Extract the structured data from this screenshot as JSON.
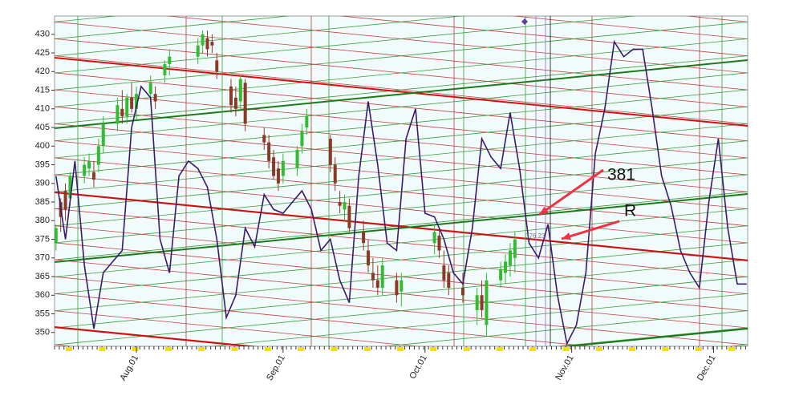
{
  "chart_data": {
    "type": "candlestick",
    "xlim": [
      195.7,
      342.2
    ],
    "ylim": [
      346.3,
      434.9
    ],
    "xticks": [
      {
        "value": 213,
        "label": "Aug.01"
      },
      {
        "value": 244,
        "label": "Sep.01"
      },
      {
        "value": 274,
        "label": "Oct.01"
      },
      {
        "value": 305,
        "label": "Nov.01"
      },
      {
        "value": 335,
        "label": "Dec.01"
      }
    ],
    "yticks": [
      350,
      355,
      360,
      365,
      370,
      375,
      380,
      385,
      390,
      395,
      400,
      405,
      410,
      415,
      420,
      425,
      430
    ],
    "up_color": "#33bb33",
    "down_color": "#8b3a2a",
    "candles": {
      "x": [
        196,
        197,
        198,
        199,
        202,
        203,
        204,
        205,
        206,
        209,
        210,
        211,
        212,
        213,
        216,
        217,
        219,
        220,
        226,
        227,
        228,
        229,
        230,
        233,
        234,
        235,
        236,
        240,
        241,
        242,
        243,
        244,
        247,
        248,
        249,
        254,
        255,
        256,
        257,
        258,
        261,
        262,
        263,
        264,
        265,
        268,
        269,
        276,
        277,
        278,
        279,
        282,
        285,
        286,
        287,
        290,
        291,
        292,
        293
      ],
      "open": [
        374,
        385,
        388,
        386,
        392,
        394,
        393,
        395,
        400,
        406,
        410,
        408,
        413,
        410,
        414,
        414,
        419,
        422,
        424,
        427,
        429,
        428,
        423,
        416,
        413,
        412,
        417,
        403,
        401,
        397,
        394,
        392,
        394,
        400,
        405,
        402,
        395,
        385,
        383,
        384,
        377,
        372,
        366,
        364,
        362,
        364,
        361,
        374,
        376,
        368,
        366,
        362,
        356,
        360,
        352,
        364,
        366,
        368,
        370
      ],
      "high": [
        379,
        386,
        390,
        393,
        397,
        398,
        396,
        402,
        408,
        413,
        415,
        414,
        417,
        416,
        419,
        416,
        423,
        426,
        429,
        431,
        431,
        430,
        425,
        418,
        416,
        419,
        418,
        405,
        403,
        399,
        396,
        398,
        400,
        406,
        410,
        403,
        397,
        388,
        387,
        386,
        380,
        375,
        370,
        368,
        370,
        366,
        366,
        379,
        378,
        372,
        368,
        366,
        362,
        364,
        366,
        369,
        371,
        374,
        377
      ],
      "low": [
        372,
        377,
        380,
        384,
        390,
        392,
        389,
        393,
        398,
        404,
        406,
        406,
        409,
        407,
        411,
        410,
        417,
        419,
        422,
        425,
        424,
        425,
        418,
        409,
        408,
        410,
        404,
        399,
        394,
        391,
        388,
        390,
        392,
        398,
        403,
        393,
        388,
        382,
        380,
        377,
        372,
        366,
        362,
        360,
        360,
        358,
        357,
        371,
        370,
        362,
        360,
        358,
        352,
        354,
        349,
        362,
        363,
        365,
        366
      ],
      "close": [
        378,
        381,
        383,
        392,
        395,
        396,
        391,
        400,
        406,
        411,
        408,
        413,
        410,
        414,
        417,
        412,
        422,
        424,
        427,
        430,
        426,
        427,
        420,
        411,
        410,
        418,
        406,
        401,
        396,
        392,
        390,
        396,
        399,
        404,
        408,
        395,
        390,
        384,
        385,
        378,
        374,
        368,
        364,
        362,
        368,
        360,
        364,
        377,
        372,
        364,
        362,
        360,
        360,
        356,
        364,
        367,
        369,
        372,
        375
      ]
    },
    "overlay": {
      "type": "line",
      "color": "#3a1a6a",
      "x": [
        196,
        198,
        200,
        202,
        204,
        206,
        208,
        210,
        212,
        214,
        216,
        218,
        220,
        222,
        224,
        226,
        228,
        230,
        232,
        234,
        236,
        238,
        240,
        242,
        244,
        246,
        248,
        250,
        252,
        254,
        256,
        258,
        260,
        262,
        264,
        266,
        268,
        270,
        272,
        274,
        276,
        278,
        280,
        282,
        284,
        286,
        288,
        290,
        292,
        294,
        296,
        298,
        300,
        302,
        304,
        306,
        308,
        310,
        312,
        314,
        316,
        318,
        320,
        322,
        324,
        326,
        328,
        330,
        332,
        334,
        336,
        338,
        340,
        342
      ],
      "values": [
        392,
        375,
        396,
        368,
        351,
        366,
        369,
        372,
        405,
        416,
        413,
        375,
        366,
        392,
        396,
        394,
        389,
        375,
        354,
        360,
        378,
        373,
        387,
        383,
        382,
        385,
        388,
        383,
        372,
        375,
        364,
        358,
        392,
        412,
        395,
        374,
        372,
        402,
        410,
        382,
        381,
        375,
        366,
        363,
        378,
        402,
        397,
        394,
        409,
        394,
        374,
        370,
        379,
        360,
        347,
        352,
        366,
        398,
        410,
        428,
        424,
        426,
        426,
        410,
        392,
        384,
        372,
        366,
        362,
        385,
        402,
        378,
        363,
        363
      ]
    },
    "annotations": [
      "381",
      "R",
      "376.23"
    ]
  }
}
